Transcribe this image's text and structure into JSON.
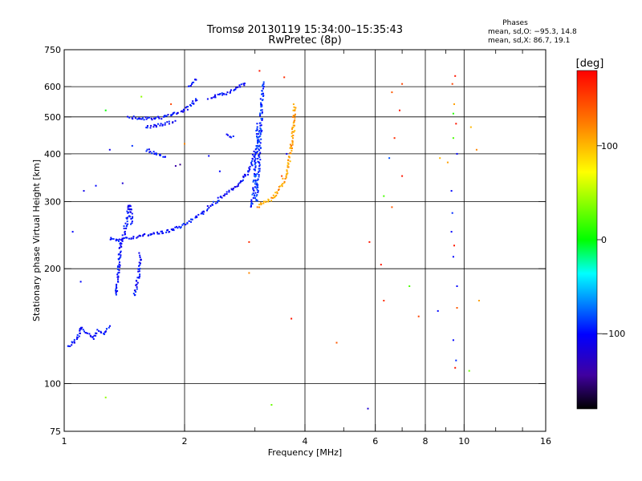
{
  "chart_data": {
    "type": "scatter",
    "title": "Tromsø 20130119 15:34:00–15:35:43",
    "subtitle": "RwPretec (8p)",
    "stats": {
      "heading": "Phases",
      "line1": "mean, sd,O:  −95.3, 14.8",
      "line2": "mean, sd,X:  86.7, 19.1"
    },
    "xlabel": "Frequency [MHz]",
    "ylabel": "Stationary phase Virtual Height [km]",
    "x_scale": "log",
    "y_scale": "log",
    "xlim": [
      1,
      16
    ],
    "ylim": [
      75,
      750
    ],
    "xticks": [
      1,
      2,
      4,
      6,
      8,
      10,
      16
    ],
    "xtick_labels": [
      "1",
      "2",
      "4",
      "6",
      "8",
      "10",
      "16"
    ],
    "yticks": [
      75,
      100,
      200,
      300,
      400,
      500,
      600,
      750
    ],
    "ytick_labels": [
      "75",
      "100",
      "200",
      "300",
      "400",
      "500",
      "600",
      "750"
    ],
    "x_gridlines": [
      2,
      4,
      6,
      8,
      10
    ],
    "y_gridlines": [
      100,
      200,
      300,
      400,
      500,
      600
    ],
    "colorbar": {
      "label": "[deg]",
      "range": [
        -180,
        180
      ],
      "ticks": [
        100,
        0,
        -100
      ],
      "tick_labels": [
        "100",
        "0",
        "−100"
      ],
      "colors": [
        "#ff0000",
        "#ff8000",
        "#ffff00",
        "#00ff00",
        "#00ffff",
        "#0000ff",
        "#4000a0",
        "#000000"
      ]
    },
    "series": [
      {
        "id": "o_low",
        "phase": -100,
        "segments": [
          [
            [
              1.02,
              125
            ],
            [
              1.05,
              128
            ],
            [
              1.08,
              132
            ],
            [
              1.1,
              140
            ],
            [
              1.14,
              135
            ],
            [
              1.18,
              132
            ],
            [
              1.22,
              138
            ],
            [
              1.26,
              135
            ],
            [
              1.3,
              142
            ]
          ],
          [
            [
              1.35,
              170
            ],
            [
              1.36,
              190
            ],
            [
              1.37,
              210
            ],
            [
              1.38,
              225
            ],
            [
              1.4,
              240
            ],
            [
              1.42,
              255
            ],
            [
              1.44,
              270
            ],
            [
              1.45,
              285
            ],
            [
              1.46,
              295
            ],
            [
              1.48,
              260
            ]
          ],
          [
            [
              1.3,
              240
            ],
            [
              1.36,
              238
            ],
            [
              1.42,
              240
            ],
            [
              1.5,
              242
            ],
            [
              1.6,
              245
            ],
            [
              1.7,
              248
            ],
            [
              1.8,
              250
            ],
            [
              1.9,
              255
            ],
            [
              2.0,
              262
            ],
            [
              2.1,
              270
            ],
            [
              2.2,
              278
            ],
            [
              2.3,
              290
            ],
            [
              2.4,
              300
            ],
            [
              2.55,
              315
            ],
            [
              2.7,
              330
            ],
            [
              2.85,
              350
            ],
            [
              2.95,
              375
            ],
            [
              3.0,
              410
            ]
          ],
          [
            [
              1.5,
              170
            ],
            [
              1.52,
              180
            ],
            [
              1.54,
              200
            ],
            [
              1.55,
              220
            ]
          ]
        ]
      },
      {
        "id": "o_trace_f2",
        "phase": -90,
        "segments": [
          [
            [
              3.02,
              300
            ],
            [
              3.05,
              340
            ],
            [
              3.07,
              380
            ],
            [
              3.08,
              420
            ],
            [
              3.1,
              460
            ],
            [
              3.11,
              500
            ],
            [
              3.12,
              540
            ],
            [
              3.13,
              580
            ],
            [
              3.14,
              620
            ]
          ],
          [
            [
              2.95,
              290
            ],
            [
              2.98,
              320
            ],
            [
              3.0,
              360
            ],
            [
              3.02,
              400
            ],
            [
              3.04,
              440
            ],
            [
              3.05,
              480
            ]
          ]
        ]
      },
      {
        "id": "o_upper",
        "phase": -100,
        "segments": [
          [
            [
              1.45,
              500
            ],
            [
              1.55,
              495
            ],
            [
              1.65,
              495
            ],
            [
              1.75,
              498
            ],
            [
              1.85,
              505
            ],
            [
              1.95,
              515
            ],
            [
              2.05,
              530
            ],
            [
              2.15,
              560
            ]
          ],
          [
            [
              1.6,
              470
            ],
            [
              1.7,
              475
            ],
            [
              1.8,
              480
            ],
            [
              1.9,
              485
            ]
          ],
          [
            [
              2.05,
              600
            ],
            [
              2.1,
              620
            ],
            [
              2.15,
              630
            ]
          ],
          [
            [
              2.3,
              560
            ],
            [
              2.45,
              570
            ],
            [
              2.6,
              580
            ],
            [
              2.75,
              600
            ],
            [
              2.85,
              620
            ]
          ],
          [
            [
              1.6,
              410
            ],
            [
              1.7,
              400
            ],
            [
              1.8,
              390
            ]
          ],
          [
            [
              2.55,
              450
            ],
            [
              2.65,
              440
            ]
          ]
        ]
      },
      {
        "id": "x_trace",
        "phase": 110,
        "segments": [
          [
            [
              3.05,
              290
            ],
            [
              3.1,
              295
            ],
            [
              3.2,
              300
            ],
            [
              3.3,
              305
            ],
            [
              3.4,
              315
            ],
            [
              3.5,
              330
            ],
            [
              3.58,
              350
            ],
            [
              3.65,
              380
            ],
            [
              3.7,
              420
            ],
            [
              3.74,
              460
            ],
            [
              3.76,
              500
            ],
            [
              3.78,
              540
            ]
          ]
        ]
      },
      {
        "id": "scattered",
        "phase": 0,
        "points": [
          [
            1.27,
            520,
            0
          ],
          [
            1.56,
            565,
            40
          ],
          [
            1.85,
            540,
            150
          ],
          [
            3.08,
            660,
            170
          ],
          [
            3.55,
            635,
            160
          ],
          [
            6.6,
            580,
            140
          ],
          [
            7.0,
            610,
            150
          ],
          [
            6.9,
            520,
            170
          ],
          [
            6.7,
            440,
            160
          ],
          [
            6.5,
            390,
            -80
          ],
          [
            6.3,
            310,
            20
          ],
          [
            6.6,
            290,
            140
          ],
          [
            7.0,
            350,
            170
          ],
          [
            9.35,
            610,
            150
          ],
          [
            9.5,
            640,
            170
          ],
          [
            9.45,
            540,
            110
          ],
          [
            9.4,
            510,
            10
          ],
          [
            9.55,
            480,
            170
          ],
          [
            9.4,
            440,
            20
          ],
          [
            9.6,
            400,
            -100
          ],
          [
            9.3,
            320,
            -100
          ],
          [
            9.35,
            280,
            -90
          ],
          [
            9.3,
            250,
            -100
          ],
          [
            9.45,
            230,
            170
          ],
          [
            9.4,
            215,
            -100
          ],
          [
            10.4,
            470,
            100
          ],
          [
            10.75,
            410,
            120
          ],
          [
            9.1,
            380,
            110
          ],
          [
            8.7,
            390,
            100
          ],
          [
            5.8,
            235,
            170
          ],
          [
            6.2,
            205,
            170
          ],
          [
            6.3,
            165,
            160
          ],
          [
            7.3,
            180,
            20
          ],
          [
            7.7,
            150,
            150
          ],
          [
            8.6,
            155,
            -100
          ],
          [
            9.6,
            180,
            -100
          ],
          [
            9.6,
            158,
            140
          ],
          [
            10.9,
            165,
            110
          ],
          [
            9.4,
            130,
            -100
          ],
          [
            9.55,
            115,
            -90
          ],
          [
            9.5,
            110,
            170
          ],
          [
            10.3,
            108,
            30
          ],
          [
            3.7,
            148,
            170
          ],
          [
            4.8,
            128,
            140
          ],
          [
            2.9,
            195,
            120
          ],
          [
            2.9,
            235,
            160
          ],
          [
            3.3,
            88,
            30
          ],
          [
            5.75,
            86,
            -120
          ],
          [
            1.27,
            92,
            40
          ],
          [
            1.1,
            185,
            -100
          ],
          [
            1.05,
            250,
            -100
          ],
          [
            1.12,
            320,
            -110
          ],
          [
            1.2,
            330,
            -100
          ],
          [
            1.3,
            410,
            -110
          ],
          [
            1.48,
            420,
            -90
          ],
          [
            2.0,
            425,
            120
          ],
          [
            1.95,
            375,
            -150
          ],
          [
            1.9,
            372,
            -140
          ],
          [
            3.5,
            350,
            150
          ],
          [
            3.6,
            400,
            -110
          ],
          [
            3.7,
            420,
            130
          ],
          [
            1.4,
            335,
            -120
          ],
          [
            2.3,
            395,
            -100
          ],
          [
            2.45,
            360,
            -100
          ]
        ]
      }
    ]
  }
}
